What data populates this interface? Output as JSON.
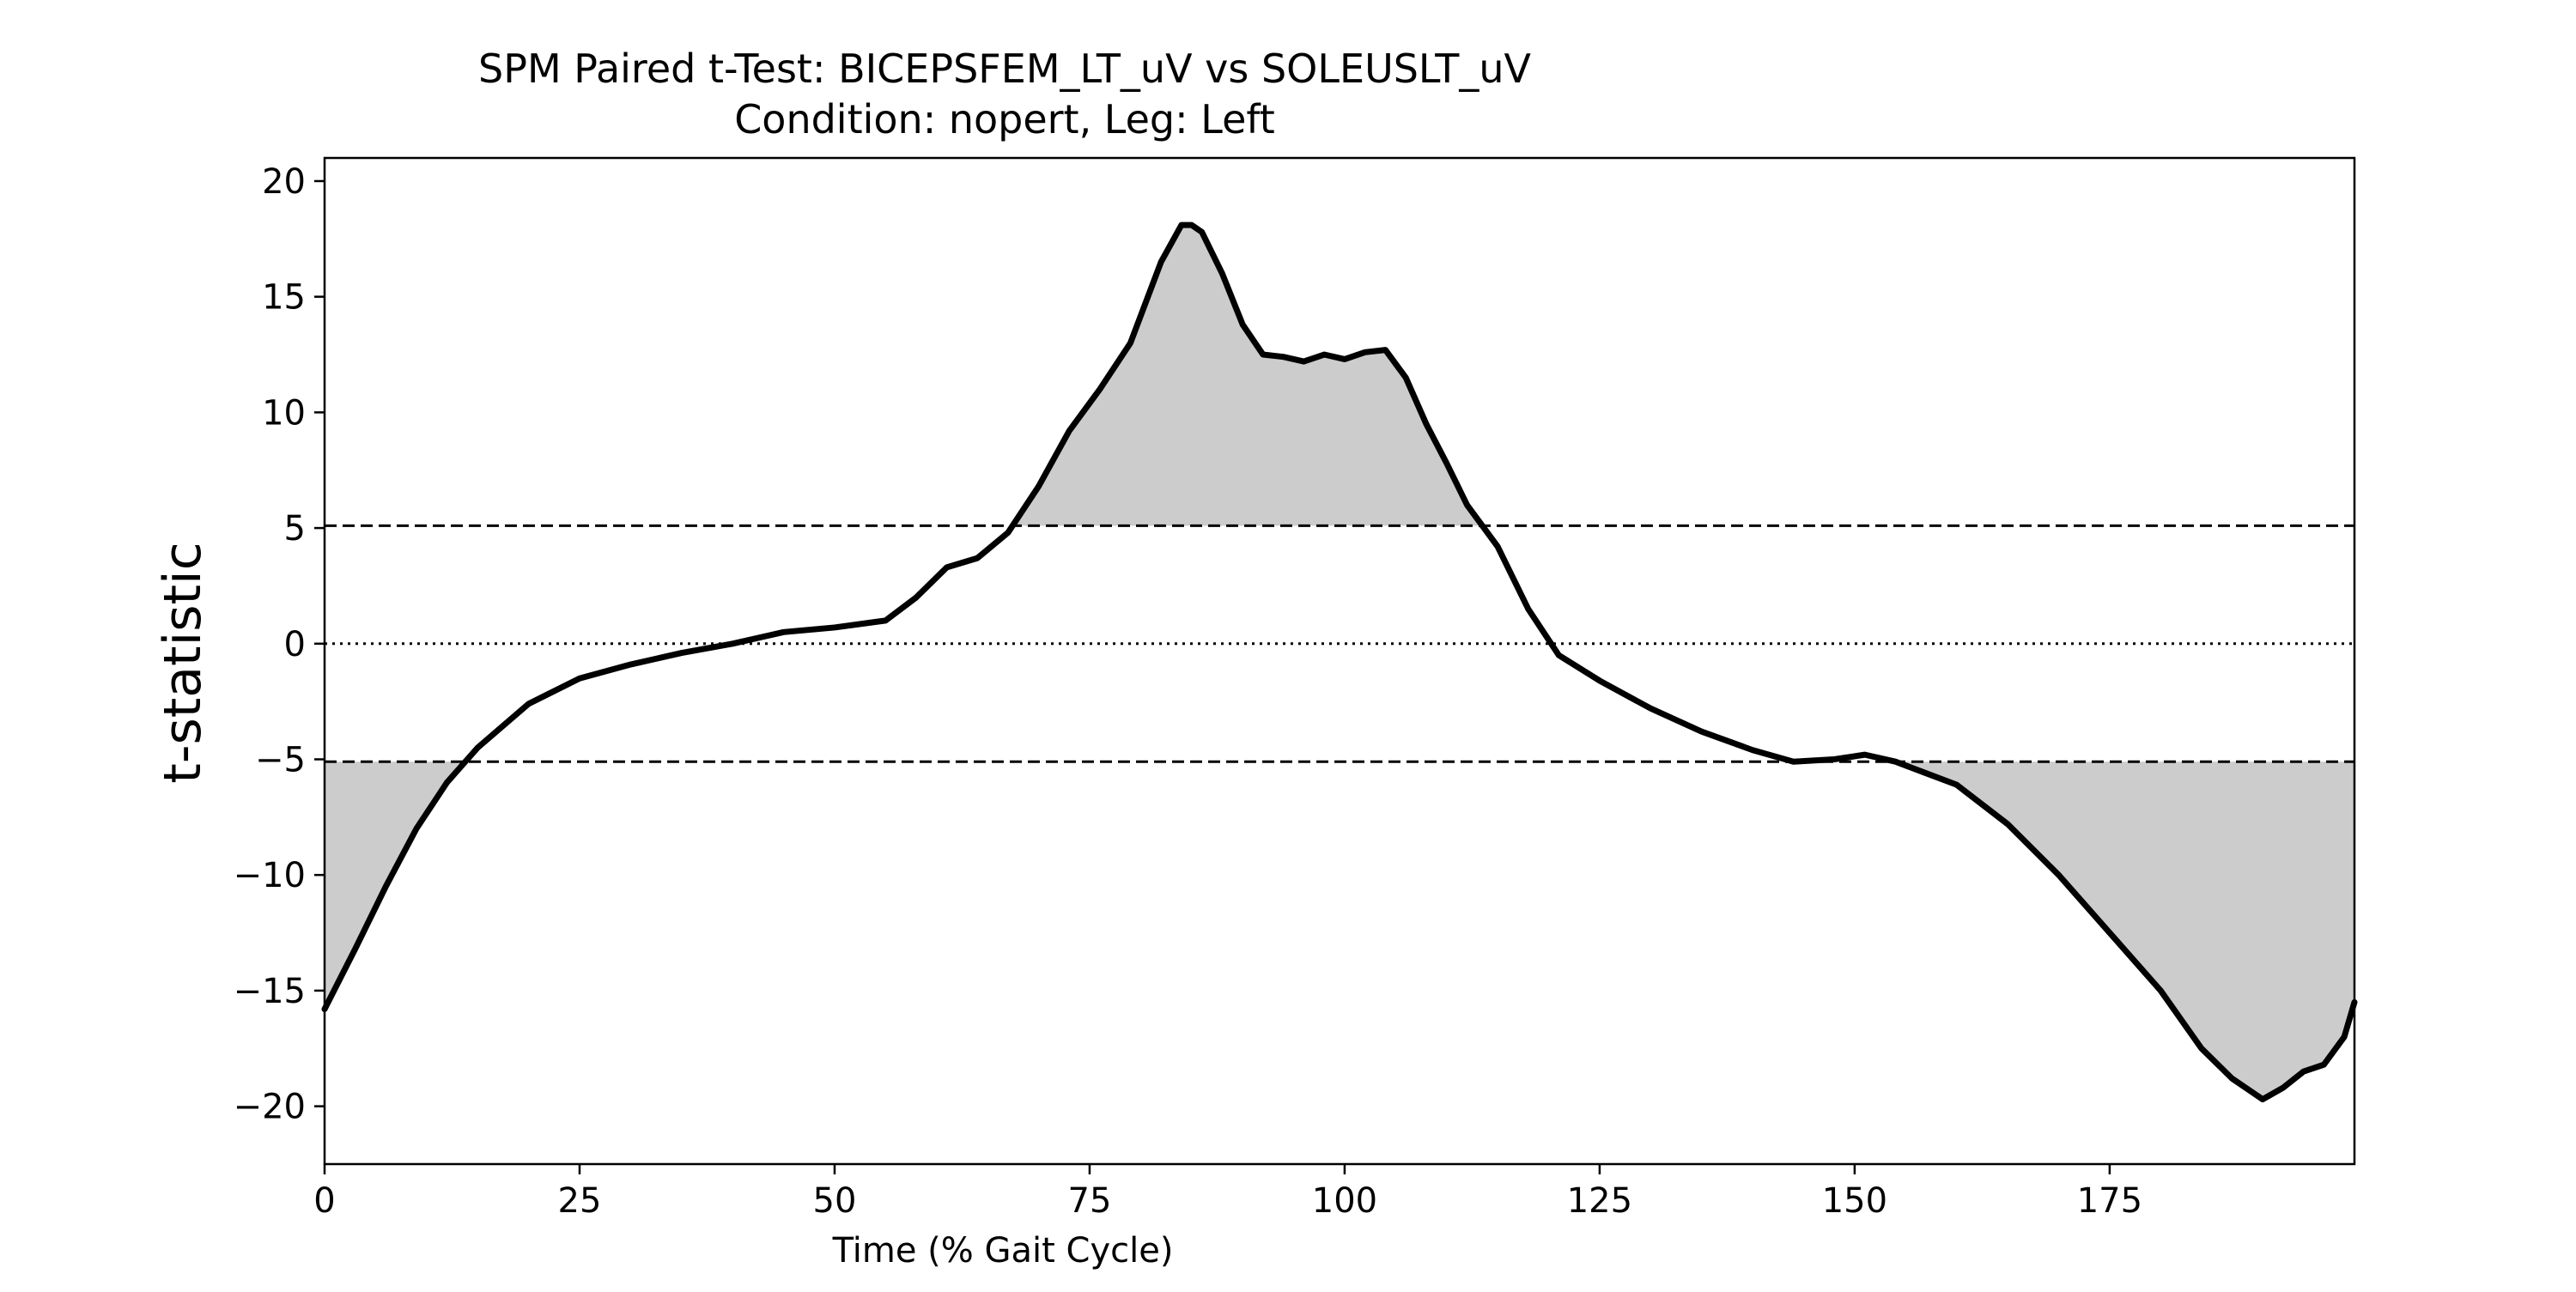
{
  "chart_data": {
    "type": "line",
    "title": "SPM Paired t-Test: BICEPSFEM_LT_uV vs SOLEUSLT_uV",
    "subtitle": "Condition: nopert, Leg: Left",
    "xlabel": "Time (% Gait Cycle)",
    "ylabel": "t-statistic",
    "xlim": [
      0,
      199
    ],
    "ylim": [
      -22.5,
      21
    ],
    "xticks": [
      0,
      25,
      50,
      75,
      100,
      125,
      150,
      175
    ],
    "xtick_labels": [
      "0",
      "25",
      "50",
      "75",
      "100",
      "125",
      "150",
      "175"
    ],
    "yticks": [
      20,
      15,
      10,
      5,
      0,
      -5,
      -10,
      -15,
      -20
    ],
    "ytick_labels": [
      "20",
      "15",
      "10",
      "5",
      "0",
      "−5",
      "−10",
      "−15",
      "−20"
    ],
    "threshold": 5.1,
    "threshold_style": "dashed",
    "zero_line_style": "dotted",
    "grid": false,
    "colors": {
      "line": "#000000",
      "fill": "#cccccc",
      "background": "#ffffff"
    },
    "series": [
      {
        "x": [
          0,
          3,
          6,
          9,
          12,
          15,
          20,
          25,
          30,
          35,
          40,
          45,
          50,
          55,
          58,
          61,
          64,
          67,
          70,
          73,
          76,
          79,
          82,
          84,
          85,
          86,
          88,
          90,
          92,
          94,
          96,
          98,
          100,
          102,
          104,
          106,
          108,
          110,
          112,
          115,
          118,
          121,
          125,
          130,
          135,
          140,
          144,
          148,
          151,
          154,
          157,
          160,
          165,
          170,
          175,
          180,
          184,
          187,
          190,
          192,
          194,
          196,
          198,
          199
        ],
        "y": [
          -15.8,
          -13.2,
          -10.5,
          -8.0,
          -6.0,
          -4.5,
          -2.6,
          -1.5,
          -0.9,
          -0.4,
          0,
          0.5,
          0.7,
          1.0,
          2.0,
          3.3,
          3.7,
          4.8,
          6.8,
          9.2,
          11.0,
          13.0,
          16.5,
          18.1,
          18.1,
          17.8,
          16.0,
          13.8,
          12.5,
          12.4,
          12.2,
          12.5,
          12.3,
          12.6,
          12.7,
          11.5,
          9.5,
          7.8,
          6.0,
          4.2,
          1.5,
          -0.5,
          -1.6,
          -2.8,
          -3.8,
          -4.6,
          -5.1,
          -5.0,
          -4.8,
          -5.1,
          -5.6,
          -6.1,
          -7.8,
          -10.0,
          -12.5,
          -15.0,
          -17.5,
          -18.8,
          -19.7,
          -19.2,
          -18.5,
          -18.2,
          -17.0,
          -15.5
        ]
      }
    ]
  }
}
